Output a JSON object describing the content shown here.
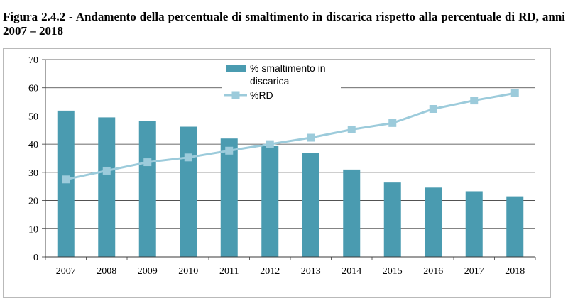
{
  "figure": {
    "caption": "Figura 2.4.2 - Andamento della percentuale di smaltimento in discarica rispetto alla percentuale di RD, anni 2007 – 2018"
  },
  "chart_data": {
    "type": "bar",
    "categories": [
      "2007",
      "2008",
      "2009",
      "2010",
      "2011",
      "2012",
      "2013",
      "2014",
      "2015",
      "2016",
      "2017",
      "2018"
    ],
    "ylim": [
      0,
      70
    ],
    "yticks": [
      0,
      10,
      20,
      30,
      40,
      50,
      60,
      70
    ],
    "grid": true,
    "legend_position": "top-center",
    "title": "",
    "xlabel": "",
    "ylabel": "",
    "series": [
      {
        "name": "% smaltimento in discarica",
        "type": "bar",
        "color": "#4a9bb0",
        "values": [
          51.9,
          49.5,
          48.3,
          46.2,
          42.0,
          39.3,
          36.8,
          31.0,
          26.4,
          24.6,
          23.3,
          21.5
        ]
      },
      {
        "name": "%RD",
        "type": "line",
        "color": "#9ccbdb",
        "values": [
          27.5,
          30.6,
          33.6,
          35.3,
          37.7,
          40.0,
          42.3,
          45.2,
          47.5,
          52.5,
          55.5,
          58.1
        ]
      }
    ]
  }
}
